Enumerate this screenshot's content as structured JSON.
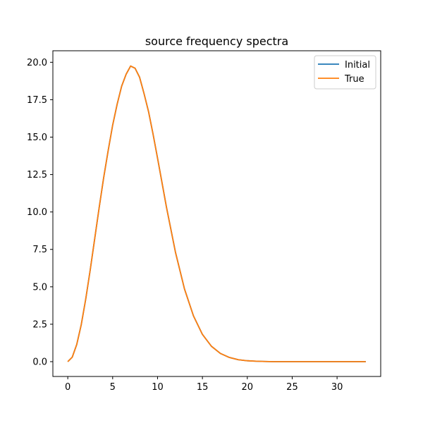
{
  "chart_data": {
    "type": "line",
    "title": "source frequency spectra",
    "xlabel": "",
    "ylabel": "",
    "xlim": [
      -1.66,
      34.86
    ],
    "ylim": [
      -0.99,
      20.77
    ],
    "xticks": [
      0,
      5,
      10,
      15,
      20,
      25,
      30
    ],
    "yticks": [
      0.0,
      2.5,
      5.0,
      7.5,
      10.0,
      12.5,
      15.0,
      17.5,
      20.0
    ],
    "xtick_labels": [
      "0",
      "5",
      "10",
      "15",
      "20",
      "25",
      "30"
    ],
    "ytick_labels": [
      "0.0",
      "2.5",
      "5.0",
      "7.5",
      "10.0",
      "12.5",
      "15.0",
      "17.5",
      "20.0"
    ],
    "grid": false,
    "legend": "top-right",
    "series": [
      {
        "name": "Initial",
        "color": "#1f77b4",
        "x": [
          0,
          0.5,
          1,
          1.5,
          2,
          2.5,
          3,
          3.5,
          4,
          4.5,
          5,
          5.5,
          6,
          6.5,
          7,
          7.5,
          8,
          8.5,
          9,
          9.5,
          10,
          11,
          12,
          13,
          14,
          15,
          16,
          17,
          18,
          19,
          20,
          21,
          22,
          23,
          24,
          25,
          27,
          29,
          31,
          33.2
        ],
        "y": [
          0.0,
          0.3,
          1.15,
          2.47,
          4.18,
          6.13,
          8.21,
          10.3,
          12.3,
          14.1,
          15.8,
          17.2,
          18.4,
          19.2,
          19.75,
          19.6,
          19.0,
          17.9,
          16.7,
          15.2,
          13.6,
          10.3,
          7.3,
          4.86,
          3.06,
          1.82,
          1.03,
          0.55,
          0.28,
          0.13,
          0.06,
          0.03,
          0.01,
          0.0,
          0.0,
          0.0,
          0.0,
          0.0,
          0.0,
          0.0
        ]
      },
      {
        "name": "True",
        "color": "#ff7f0e",
        "x": [
          0,
          0.5,
          1,
          1.5,
          2,
          2.5,
          3,
          3.5,
          4,
          4.5,
          5,
          5.5,
          6,
          6.5,
          7,
          7.5,
          8,
          8.5,
          9,
          9.5,
          10,
          11,
          12,
          13,
          14,
          15,
          16,
          17,
          18,
          19,
          20,
          21,
          22,
          23,
          24,
          25,
          27,
          29,
          31,
          33.2
        ],
        "y": [
          0.0,
          0.3,
          1.15,
          2.47,
          4.18,
          6.13,
          8.21,
          10.3,
          12.3,
          14.1,
          15.8,
          17.2,
          18.4,
          19.2,
          19.75,
          19.6,
          19.0,
          17.9,
          16.7,
          15.2,
          13.6,
          10.3,
          7.3,
          4.86,
          3.06,
          1.82,
          1.03,
          0.55,
          0.28,
          0.13,
          0.06,
          0.03,
          0.01,
          0.0,
          0.0,
          0.0,
          0.0,
          0.0,
          0.0,
          0.0
        ]
      }
    ]
  }
}
